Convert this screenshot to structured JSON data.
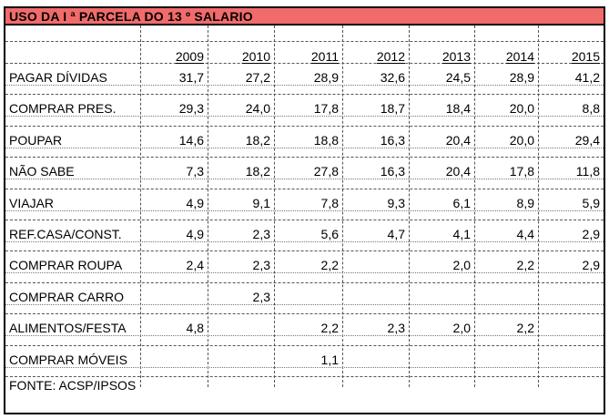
{
  "title": "USO DA I ª PARCELA DO 13 º SALARIO",
  "years": [
    "2009",
    "2010",
    "2011",
    "2012",
    "2013",
    "2014",
    "2015"
  ],
  "rows": [
    {
      "label": "PAGAR DÍVIDAS",
      "values": [
        "31,7",
        "27,2",
        "28,9",
        "32,6",
        "24,5",
        "28,9",
        "41,2"
      ]
    },
    {
      "label": "COMPRAR PRES.",
      "values": [
        "29,3",
        "24,0",
        "17,8",
        "18,7",
        "18,4",
        "20,0",
        "8,8"
      ]
    },
    {
      "label": "POUPAR",
      "values": [
        "14,6",
        "18,2",
        "18,8",
        "16,3",
        "20,4",
        "20,0",
        "29,4"
      ]
    },
    {
      "label": "NÃO SABE",
      "values": [
        "7,3",
        "18,2",
        "27,8",
        "16,3",
        "20,4",
        "17,8",
        "11,8"
      ]
    },
    {
      "label": "VIAJAR",
      "values": [
        "4,9",
        "9,1",
        "7,8",
        "9,3",
        "6,1",
        "8,9",
        "5,9"
      ]
    },
    {
      "label": "REF.CASA/CONST.",
      "values": [
        "4,9",
        "2,3",
        "5,6",
        "4,7",
        "4,1",
        "4,4",
        "2,9"
      ]
    },
    {
      "label": "COMPRAR ROUPA",
      "values": [
        "2,4",
        "2,3",
        "2,2",
        "",
        "2,0",
        "2,2",
        "2,9"
      ]
    },
    {
      "label": "COMPRAR CARRO",
      "values": [
        "",
        "2,3",
        "",
        "",
        "",
        "",
        ""
      ]
    },
    {
      "label": "ALIMENTOS/FESTA",
      "values": [
        "4,8",
        "",
        "2,2",
        "2,3",
        "2,0",
        "2,2",
        ""
      ]
    },
    {
      "label": "COMPRAR MÓVEIS",
      "values": [
        "",
        "",
        "1,1",
        "",
        "",
        "",
        ""
      ]
    }
  ],
  "footer": "FONTE: ACSP/IPSOS",
  "title_bg_color": "#f26b6b"
}
